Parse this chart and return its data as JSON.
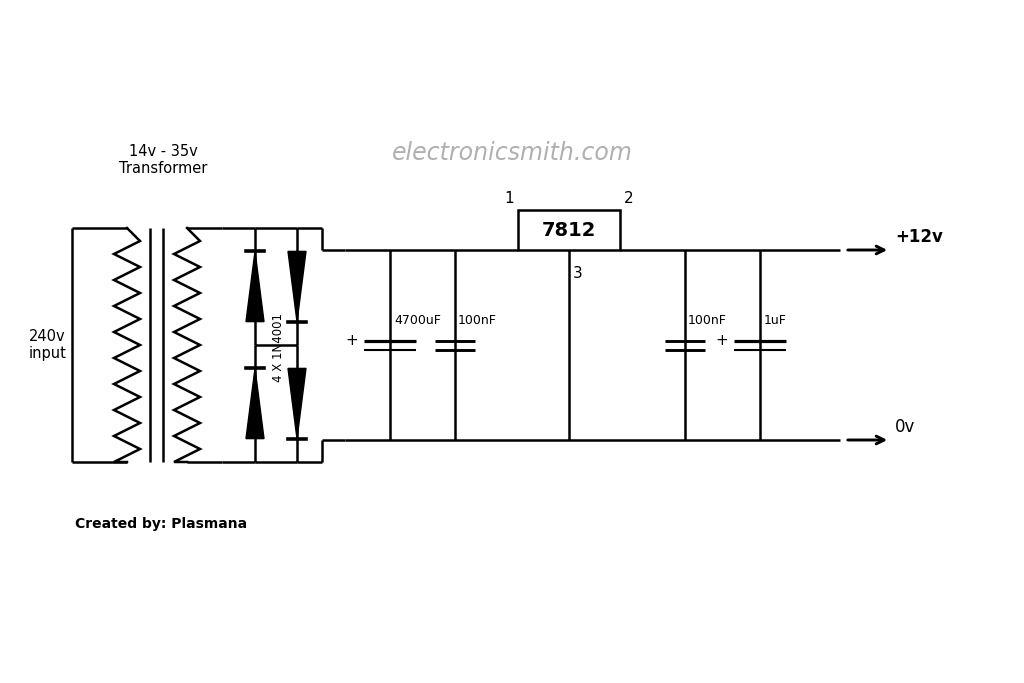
{
  "bg_color": "#ffffff",
  "line_color": "#000000",
  "watermark_color": "#b0b0b0",
  "watermark_text": "electronicsmith.com",
  "created_by_text": "Created by: Plasmana",
  "transformer_label": "14v - 35v\nTransformer",
  "input_label": "240v\ninput",
  "diode_label": "4 X 1N4001",
  "ic_label": "7812",
  "cap1_label": "4700uF",
  "cap2_label": "100nF",
  "cap3_label": "100nF",
  "cap4_label": "1uF",
  "output_pos_label": "+12v",
  "output_neg_label": "0v",
  "pin1_label": "1",
  "pin2_label": "2",
  "pin3_label": "3"
}
